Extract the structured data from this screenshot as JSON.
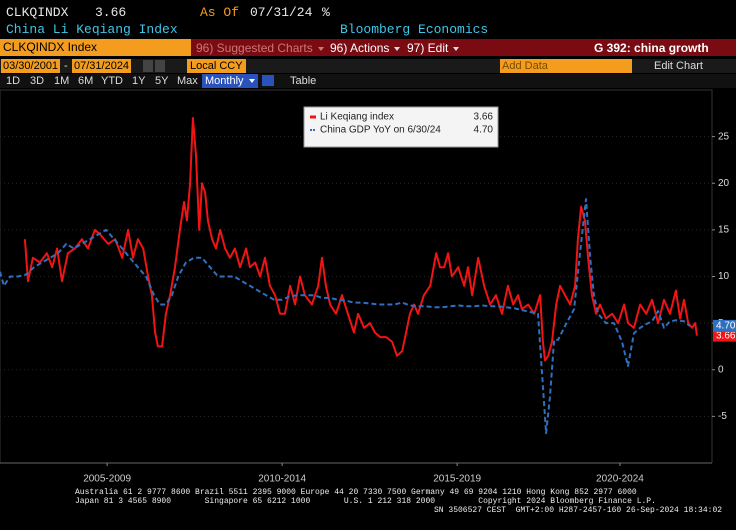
{
  "header": {
    "ticker": "CLKQINDX",
    "last": "3.66",
    "as_of_label": "As Of",
    "as_of_date": "07/31/24",
    "unit": "%",
    "name": "China Li Keqiang Index",
    "source": "Bloomberg Economics"
  },
  "toolbar": {
    "security": "CLKQINDX Index",
    "menu": [
      "96) Suggested Charts",
      "96) Actions",
      "97) Edit"
    ],
    "chart_ref": "G 392: china growth",
    "start_date": "03/30/2001",
    "date_separator": "-",
    "end_date": "07/31/2024",
    "currency": "Local CCY",
    "add_data": "Add Data",
    "edit_chart": "Edit Chart",
    "periods": [
      "1D",
      "3D",
      "1M",
      "6M",
      "YTD",
      "1Y",
      "5Y",
      "Max"
    ],
    "frequency": "Monthly",
    "table": "Table"
  },
  "chart_data": {
    "type": "line",
    "legend": "top",
    "grid": true,
    "xlim": [
      2004.65,
      2024.99
    ],
    "ylim": [
      -10,
      30
    ],
    "xticks": [
      {
        "value": 2007.71,
        "label": "2005-2009"
      },
      {
        "value": 2012.71,
        "label": "2010-2014"
      },
      {
        "value": 2017.71,
        "label": "2015-2019"
      },
      {
        "value": 2022.36,
        "label": "2020-2024"
      }
    ],
    "yticks": [
      -5,
      0,
      5,
      10,
      15,
      20,
      25
    ],
    "series": [
      {
        "name": "Li Keqiang index",
        "color": "#f01414",
        "dash": false,
        "last_label": "3.66",
        "x": [
          2005.36,
          2005.45,
          2005.59,
          2005.79,
          2005.99,
          2006.14,
          2006.28,
          2006.42,
          2006.59,
          2006.79,
          2006.99,
          2007.16,
          2007.36,
          2007.51,
          2007.74,
          2007.94,
          2008.14,
          2008.31,
          2008.45,
          2008.59,
          2008.74,
          2008.88,
          2008.99,
          2009.08,
          2009.16,
          2009.28,
          2009.39,
          2009.51,
          2009.65,
          2009.79,
          2009.91,
          2009.99,
          2010.08,
          2010.16,
          2010.25,
          2010.34,
          2010.42,
          2010.51,
          2010.59,
          2010.71,
          2010.82,
          2010.94,
          2011.08,
          2011.22,
          2011.36,
          2011.51,
          2011.68,
          2011.79,
          2011.94,
          2012.08,
          2012.22,
          2012.36,
          2012.51,
          2012.65,
          2012.79,
          2012.94,
          2013.08,
          2013.22,
          2013.36,
          2013.56,
          2013.74,
          2013.85,
          2013.96,
          2014.08,
          2014.25,
          2014.42,
          2014.59,
          2014.76,
          2014.88,
          2015.05,
          2015.22,
          2015.36,
          2015.51,
          2015.68,
          2015.85,
          2015.99,
          2016.14,
          2016.25,
          2016.36,
          2016.48,
          2016.59,
          2016.76,
          2016.94,
          2017.11,
          2017.22,
          2017.34,
          2017.45,
          2017.56,
          2017.74,
          2017.91,
          2018.02,
          2018.14,
          2018.31,
          2018.48,
          2018.65,
          2018.82,
          2018.99,
          2019.16,
          2019.31,
          2019.45,
          2019.56,
          2019.74,
          2019.91,
          2020.08,
          2020.16,
          2020.22,
          2020.31,
          2020.42,
          2020.54,
          2020.65,
          2020.79,
          2020.94,
          2021.08,
          2021.16,
          2021.25,
          2021.36,
          2021.45,
          2021.56,
          2021.68,
          2021.79,
          2021.96,
          2022.14,
          2022.31,
          2022.48,
          2022.59,
          2022.76,
          2022.94,
          2023.11,
          2023.28,
          2023.45,
          2023.62,
          2023.79,
          2023.96,
          2024.08,
          2024.19,
          2024.31,
          2024.42,
          2024.51,
          2024.56
        ],
        "values": [
          14,
          9.5,
          12,
          11.5,
          12.5,
          11,
          13,
          9.5,
          12.5,
          13,
          14,
          13,
          15,
          14.5,
          13.5,
          14,
          12,
          15,
          12,
          14,
          13,
          10,
          8,
          4,
          2.5,
          2.5,
          6,
          8,
          11,
          15,
          18,
          16,
          20,
          27,
          23,
          15,
          20,
          19,
          16,
          14,
          13,
          15,
          13,
          12,
          13,
          11,
          13,
          11,
          11.5,
          10,
          12,
          9,
          8,
          6,
          6,
          9,
          7,
          10,
          8,
          7,
          9,
          12,
          9,
          7,
          6,
          8,
          6,
          4,
          6,
          4.5,
          5,
          4,
          3.5,
          3.5,
          3,
          1.5,
          2,
          4,
          6,
          7,
          6,
          8,
          9,
          12.5,
          11,
          11,
          12.5,
          10,
          11,
          9,
          11,
          8,
          12,
          9,
          7,
          8,
          6,
          9,
          7,
          8,
          6.5,
          7,
          6,
          8,
          3,
          1,
          1.5,
          3,
          7,
          9,
          8,
          7,
          9,
          14,
          17.5,
          16,
          12,
          8,
          6,
          7,
          5.5,
          6,
          5,
          7,
          5,
          4.5,
          7,
          6,
          7.5,
          5,
          7.5,
          6,
          8.5,
          5.5,
          7.5,
          5,
          4.5,
          5,
          3.66
        ]
      },
      {
        "name": "China GDP YoY on 6/30/24",
        "color": "#2f6fc0",
        "dash": true,
        "last_label": "4.70",
        "x": [
          2004.65,
          2004.76,
          2004.94,
          2005.16,
          2005.39,
          2005.62,
          2005.85,
          2006.08,
          2006.31,
          2006.54,
          2006.76,
          2006.99,
          2007.22,
          2007.45,
          2007.68,
          2007.91,
          2008.14,
          2008.36,
          2008.59,
          2008.82,
          2009.05,
          2009.22,
          2009.39,
          2009.56,
          2009.74,
          2009.96,
          2010.19,
          2010.42,
          2010.65,
          2010.88,
          2011.11,
          2011.34,
          2011.56,
          2011.79,
          2012.02,
          2012.25,
          2012.48,
          2012.71,
          2012.94,
          2013.16,
          2013.39,
          2013.62,
          2013.85,
          2014.08,
          2014.31,
          2014.54,
          2014.76,
          2014.99,
          2015.22,
          2015.45,
          2015.68,
          2015.91,
          2016.14,
          2016.36,
          2016.59,
          2016.82,
          2017.05,
          2017.28,
          2017.51,
          2017.74,
          2017.96,
          2018.19,
          2018.42,
          2018.65,
          2018.88,
          2019.11,
          2019.34,
          2019.56,
          2019.79,
          2020.02,
          2020.25,
          2020.36,
          2020.48,
          2020.59,
          2020.82,
          2021.05,
          2021.22,
          2021.39,
          2021.51,
          2021.62,
          2021.74,
          2021.96,
          2022.19,
          2022.42,
          2022.59,
          2022.76,
          2022.94,
          2023.11,
          2023.28,
          2023.45,
          2023.62,
          2023.79,
          2023.96,
          2024.19,
          2024.36
        ],
        "values": [
          10.5,
          9,
          10,
          10,
          10.2,
          11,
          11.5,
          12,
          12.5,
          13.5,
          13,
          13.5,
          14,
          14.5,
          15,
          14,
          13,
          12,
          11,
          10,
          8,
          7,
          7,
          8,
          10,
          11.5,
          12,
          12,
          11,
          10,
          10,
          10,
          9.5,
          9,
          8.5,
          8,
          7.5,
          7.5,
          7.9,
          8,
          8,
          8,
          7.7,
          7.7,
          7.5,
          7.4,
          7.2,
          7.2,
          7.1,
          7,
          7,
          7,
          7.2,
          6.9,
          6.8,
          6.8,
          6.7,
          6.7,
          6.8,
          6.9,
          6.8,
          6.8,
          6.9,
          6.8,
          6.8,
          6.7,
          6.6,
          6.4,
          6.2,
          6.0,
          -6.8,
          -3,
          3.2,
          3.2,
          4.9,
          6.5,
          12.5,
          18.3,
          12.0,
          7.9,
          6.0,
          5.0,
          5.0,
          3.0,
          0.4,
          3.9,
          4.5,
          4.9,
          5.2,
          6.3,
          4.5,
          5.2,
          5.3,
          5.2,
          4.7
        ]
      }
    ]
  },
  "footer": {
    "lines": [
      "Australia 61 2 9777 8600 Brazil 5511 2395 9000 Europe 44 20 7330 7500 Germany 49 69 9204 1210 Hong Kong 852 2977 6000",
      "Japan 81 3 4565 8900       Singapore 65 6212 1000       U.S. 1 212 318 2000         Copyright 2024 Bloomberg Finance L.P.",
      "SN 3506527 CEST  GMT+2:00 H287-2457-160 26-Sep-2024 18:34:02"
    ]
  }
}
